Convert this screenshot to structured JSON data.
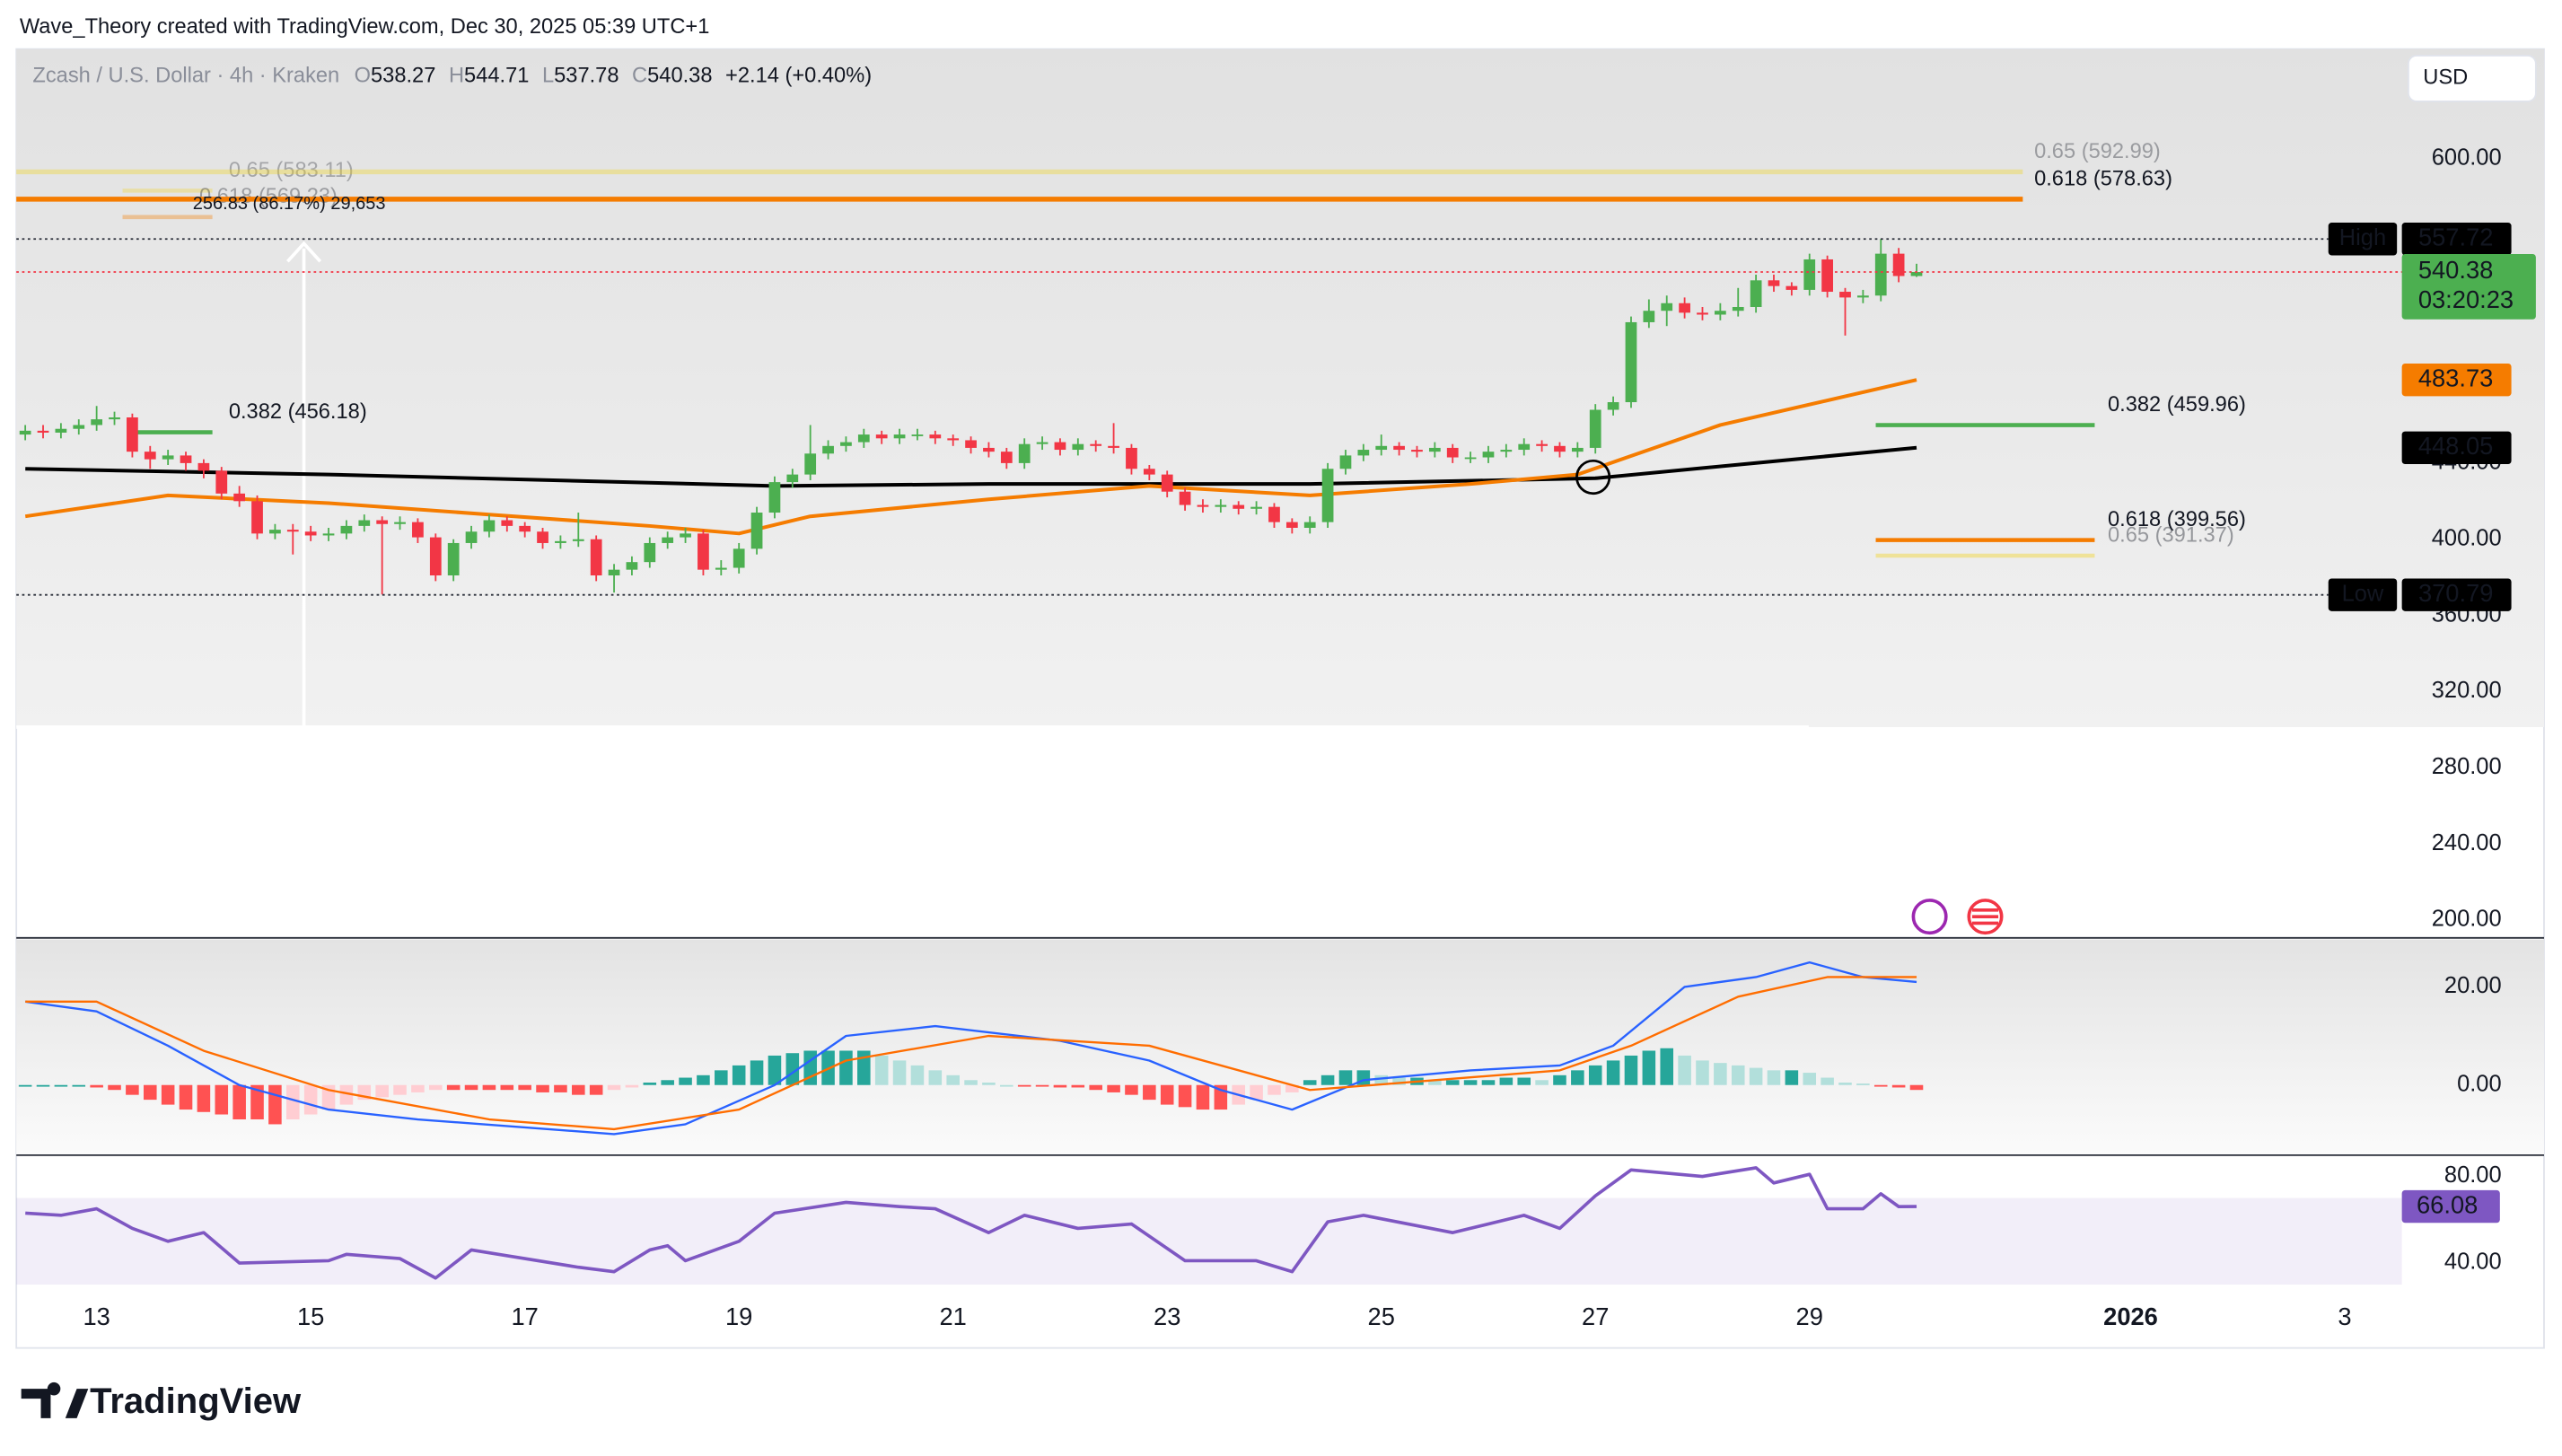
{
  "header": {
    "credit": "Wave_Theory created with TradingView.com, Dec 30, 2025 05:39 UTC+1"
  },
  "footer": {
    "brand": "TradingView"
  },
  "chart_data": [
    {
      "type": "candlestick",
      "legend": {
        "name": "Zcash / U.S. Dollar · 4h · Kraken",
        "letters": [
          "O",
          "H",
          "L",
          "C"
        ],
        "values": [
          538.27,
          544.71,
          537.78,
          540.38
        ],
        "change": "+2.14 (+0.40%)"
      },
      "currency": "USD",
      "up_color": "#4caf50",
      "down_color": "#f23645",
      "xlim": [
        -0.5,
        133.2
      ],
      "xticks": [
        {
          "value": 4,
          "label": "13"
        },
        {
          "value": 16,
          "label": "15"
        },
        {
          "value": 28,
          "label": "17"
        },
        {
          "value": 40,
          "label": "19"
        },
        {
          "value": 52,
          "label": "21"
        },
        {
          "value": 64,
          "label": "23"
        },
        {
          "value": 76,
          "label": "25"
        },
        {
          "value": 88,
          "label": "27"
        },
        {
          "value": 100,
          "label": "29"
        },
        {
          "value": 118,
          "label": "2026"
        },
        {
          "value": 130,
          "label": "3"
        }
      ],
      "ylim": [
        190.6,
        657.5
      ],
      "yticks": [
        {
          "value": 600,
          "label": "600.00"
        },
        {
          "value": 440,
          "label": "440.00"
        },
        {
          "value": 400,
          "label": "400.00"
        },
        {
          "value": 360,
          "label": "360.00"
        },
        {
          "value": 320,
          "label": "320.00"
        },
        {
          "value": 280,
          "label": "280.00"
        },
        {
          "value": 240,
          "label": "240.00"
        },
        {
          "value": 200,
          "label": "200.00"
        }
      ],
      "ohlc": [
        [
          455,
          460,
          452,
          457
        ],
        [
          457,
          460,
          453,
          456
        ],
        [
          456,
          461,
          453,
          458
        ],
        [
          458,
          463,
          455,
          460
        ],
        [
          460,
          470,
          457,
          463
        ],
        [
          463,
          467,
          460,
          464
        ],
        [
          464,
          466,
          443,
          446
        ],
        [
          446,
          449,
          437,
          442
        ],
        [
          442,
          447,
          439,
          444
        ],
        [
          444,
          446,
          436,
          440
        ],
        [
          440,
          442,
          432,
          436
        ],
        [
          436,
          438,
          421,
          424
        ],
        [
          424,
          428,
          417,
          420
        ],
        [
          420,
          423,
          400,
          403
        ],
        [
          403,
          408,
          400,
          405
        ],
        [
          405,
          408,
          392,
          404
        ],
        [
          404,
          407,
          399,
          402
        ],
        [
          402,
          406,
          399,
          403
        ],
        [
          403,
          410,
          400,
          407
        ],
        [
          407,
          413,
          404,
          410
        ],
        [
          410,
          412,
          371,
          408
        ],
        [
          408,
          412,
          405,
          409
        ],
        [
          409,
          411,
          398,
          401
        ],
        [
          401,
          403,
          378,
          381
        ],
        [
          381,
          400,
          378,
          398
        ],
        [
          398,
          407,
          395,
          404
        ],
        [
          404,
          413,
          401,
          410
        ],
        [
          410,
          412,
          404,
          407
        ],
        [
          407,
          409,
          401,
          404
        ],
        [
          404,
          406,
          395,
          398
        ],
        [
          398,
          402,
          395,
          399
        ],
        [
          399,
          414,
          396,
          400
        ],
        [
          400,
          402,
          378,
          381
        ],
        [
          381,
          387,
          372,
          384
        ],
        [
          384,
          391,
          381,
          388
        ],
        [
          388,
          401,
          385,
          398
        ],
        [
          398,
          404,
          395,
          401
        ],
        [
          401,
          406,
          398,
          403
        ],
        [
          403,
          405,
          381,
          384
        ],
        [
          384,
          389,
          381,
          385
        ],
        [
          385,
          398,
          382,
          395
        ],
        [
          395,
          417,
          392,
          414
        ],
        [
          414,
          433,
          411,
          430
        ],
        [
          430,
          437,
          427,
          434
        ],
        [
          434,
          460,
          431,
          445
        ],
        [
          445,
          452,
          442,
          449
        ],
        [
          449,
          454,
          446,
          451
        ],
        [
          451,
          458,
          448,
          455
        ],
        [
          455,
          457,
          450,
          453
        ],
        [
          453,
          458,
          450,
          455
        ],
        [
          455,
          458,
          452,
          455
        ],
        [
          455,
          457,
          450,
          453
        ],
        [
          453,
          455,
          449,
          452
        ],
        [
          452,
          454,
          445,
          448
        ],
        [
          448,
          451,
          443,
          446
        ],
        [
          446,
          448,
          437,
          440
        ],
        [
          440,
          453,
          437,
          450
        ],
        [
          450,
          454,
          447,
          451
        ],
        [
          451,
          453,
          444,
          447
        ],
        [
          447,
          453,
          444,
          450
        ],
        [
          450,
          452,
          446,
          449
        ],
        [
          449,
          461,
          445,
          448
        ],
        [
          448,
          450,
          434,
          437
        ],
        [
          437,
          439,
          431,
          434
        ],
        [
          434,
          436,
          422,
          425
        ],
        [
          425,
          427,
          415,
          418
        ],
        [
          418,
          421,
          414,
          417
        ],
        [
          417,
          421,
          414,
          418
        ],
        [
          418,
          420,
          413,
          416
        ],
        [
          416,
          420,
          413,
          417
        ],
        [
          417,
          419,
          406,
          409
        ],
        [
          409,
          411,
          403,
          406
        ],
        [
          406,
          412,
          403,
          409
        ],
        [
          409,
          440,
          406,
          437
        ],
        [
          437,
          447,
          434,
          444
        ],
        [
          444,
          450,
          441,
          447
        ],
        [
          447,
          455,
          444,
          449
        ],
        [
          449,
          451,
          444,
          447
        ],
        [
          447,
          449,
          443,
          446
        ],
        [
          446,
          451,
          443,
          448
        ],
        [
          448,
          450,
          440,
          443
        ],
        [
          443,
          446,
          440,
          443
        ],
        [
          443,
          449,
          440,
          446
        ],
        [
          446,
          450,
          443,
          447
        ],
        [
          447,
          453,
          444,
          450
        ],
        [
          450,
          452,
          446,
          449
        ],
        [
          449,
          451,
          443,
          446
        ],
        [
          446,
          451,
          443,
          448
        ],
        [
          448,
          471,
          445,
          468
        ],
        [
          468,
          475,
          465,
          472
        ],
        [
          472,
          517,
          469,
          514
        ],
        [
          514,
          526,
          511,
          520
        ],
        [
          520,
          528,
          512,
          524
        ],
        [
          524,
          527,
          516,
          519
        ],
        [
          519,
          522,
          515,
          518
        ],
        [
          518,
          524,
          515,
          520
        ],
        [
          520,
          532,
          517,
          522
        ],
        [
          522,
          539,
          519,
          536
        ],
        [
          536,
          539,
          530,
          533
        ],
        [
          533,
          535,
          528,
          531
        ],
        [
          531,
          550,
          528,
          547
        ],
        [
          547,
          549,
          527,
          530
        ],
        [
          530,
          532,
          507,
          527
        ],
        [
          527,
          531,
          524,
          528
        ],
        [
          528,
          557.72,
          525,
          550
        ],
        [
          550,
          553,
          535,
          538.27
        ],
        [
          538.27,
          544.71,
          537.78,
          540.38
        ]
      ],
      "series": [
        {
          "color": "#000000",
          "x": [
            0,
            17,
            42,
            54,
            72,
            88,
            106
          ],
          "values": [
            437,
            434,
            428,
            429,
            429,
            432,
            448.05
          ]
        },
        {
          "color": "#f57c00",
          "x": [
            0,
            8,
            17,
            26,
            35,
            40,
            44,
            54,
            63,
            72,
            81,
            87,
            95,
            106
          ],
          "values": [
            412,
            423,
            419,
            413,
            407,
            403,
            412,
            421,
            428,
            423,
            429,
            434,
            460,
            483.73
          ]
        }
      ],
      "fib_levels": [
        {
          "label": "0.65 (583.11)",
          "value": 583.11,
          "color": "#f2d31b"
        },
        {
          "label": "0.618 (569.23)",
          "value": 569.23,
          "color": "#f57c00"
        },
        {
          "label": "0.382 (456.18)",
          "value": 456.18,
          "color": "#4caf50"
        },
        {
          "label": "0.65 (592.99)",
          "value": 592.99,
          "color": "#f2d31b"
        },
        {
          "label": "0.618 (578.63)",
          "value": 578.63,
          "color": "#f57c00"
        },
        {
          "label": "0.382 (459.96)",
          "value": 459.96,
          "color": "#4caf50"
        },
        {
          "label": "0.618 (399.56)",
          "value": 399.56,
          "color": "#f57c00"
        },
        {
          "label": "0.65 (391.37)",
          "value": 391.37,
          "color": "#f2d31b"
        }
      ],
      "measure": "256.83 (86.17%) 29,653",
      "price_labels": [
        {
          "text": "High",
          "value": 557.72,
          "color": "#000000"
        },
        {
          "value": 540.38,
          "sub": "03:20:23",
          "color": "#4caf50"
        },
        {
          "value": 483.73,
          "color": "#f57c00"
        },
        {
          "value": 448.05,
          "color": "#000000"
        },
        {
          "text": "Low",
          "value": 370.79,
          "color": "#000000"
        }
      ]
    },
    {
      "type": "macd",
      "ylim": [
        -14.3,
        30
      ],
      "yticks": [
        {
          "value": 20,
          "label": "20.00"
        },
        {
          "value": 0,
          "label": "0.00"
        }
      ],
      "histogram": [
        0,
        0,
        0,
        0,
        -0.5,
        -1,
        -2,
        -3,
        -4,
        -5,
        -5.5,
        -6,
        -7,
        -7,
        -8,
        -7,
        -6,
        -5,
        -4,
        -3,
        -2.5,
        -2,
        -1.5,
        -1,
        -1,
        -1,
        -1,
        -1,
        -1,
        -1.5,
        -1.5,
        -2,
        -2,
        -1,
        -0.5,
        0.5,
        1,
        1.5,
        2,
        3,
        4,
        5,
        6,
        6.5,
        7,
        7,
        7,
        7,
        6,
        5,
        4,
        3,
        2,
        1,
        0.5,
        0,
        -0.2,
        -0.3,
        -0.5,
        -0.5,
        -1,
        -1.5,
        -2,
        -3,
        -4,
        -4.5,
        -5,
        -5,
        -4,
        -3,
        -2,
        -1.5,
        1,
        2,
        3,
        3,
        2,
        1.5,
        1.5,
        1,
        1,
        1,
        1,
        1.5,
        1.5,
        1,
        2,
        3,
        4,
        5,
        6,
        7,
        7.5,
        6,
        5,
        4.5,
        4,
        3.5,
        3,
        3,
        2.5,
        1.5,
        0.5,
        0.3,
        -0.3,
        -0.5,
        -1
      ],
      "series": [
        {
          "color": "#2962ff",
          "x": [
            0,
            4,
            8,
            12,
            17,
            22,
            33,
            37,
            42,
            46,
            51,
            58,
            63,
            67,
            71,
            75,
            81,
            86,
            89,
            93,
            97,
            100,
            103,
            106
          ],
          "values": [
            17,
            15,
            8,
            0,
            -5,
            -7,
            -10,
            -8,
            0,
            10,
            12,
            9,
            5,
            -1,
            -5,
            1,
            3,
            4,
            8,
            20,
            22,
            25,
            22,
            21
          ]
        },
        {
          "color": "#ff6d00",
          "x": [
            0,
            4,
            10,
            17,
            26,
            33,
            40,
            46,
            54,
            63,
            72,
            79,
            86,
            90,
            96,
            101,
            106
          ],
          "values": [
            17,
            17,
            7,
            -1,
            -7,
            -9,
            -5,
            5,
            10,
            8,
            -1,
            1,
            3,
            8,
            18,
            22,
            22
          ]
        }
      ]
    },
    {
      "type": "rsi",
      "ylim": [
        29.4,
        89.8
      ],
      "yticks": [
        {
          "value": 80,
          "label": "80.00"
        },
        {
          "value": 40,
          "label": "40.00"
        }
      ],
      "band": [
        30,
        70
      ],
      "series": [
        {
          "color": "#7e57c2",
          "x": [
            0,
            2,
            4,
            6,
            8,
            10,
            12,
            17,
            18,
            21,
            23,
            25,
            28,
            31,
            33,
            35,
            36,
            37,
            40,
            42,
            46,
            49,
            51,
            54,
            56,
            59,
            62,
            65,
            69,
            71,
            73,
            75,
            80,
            84,
            86,
            88,
            90,
            94,
            97,
            98,
            100,
            101,
            103,
            104,
            105,
            106
          ],
          "values": [
            63,
            62,
            65,
            56,
            50,
            54,
            40,
            41,
            44,
            42,
            33,
            46,
            42,
            38,
            36,
            46,
            48,
            41,
            50,
            63,
            68,
            66,
            65,
            54,
            62,
            56,
            58,
            41,
            41,
            36,
            59,
            62,
            54,
            62,
            56,
            71,
            83,
            80,
            84,
            77,
            81,
            65,
            65,
            72,
            66,
            66.08
          ]
        }
      ]
    }
  ]
}
